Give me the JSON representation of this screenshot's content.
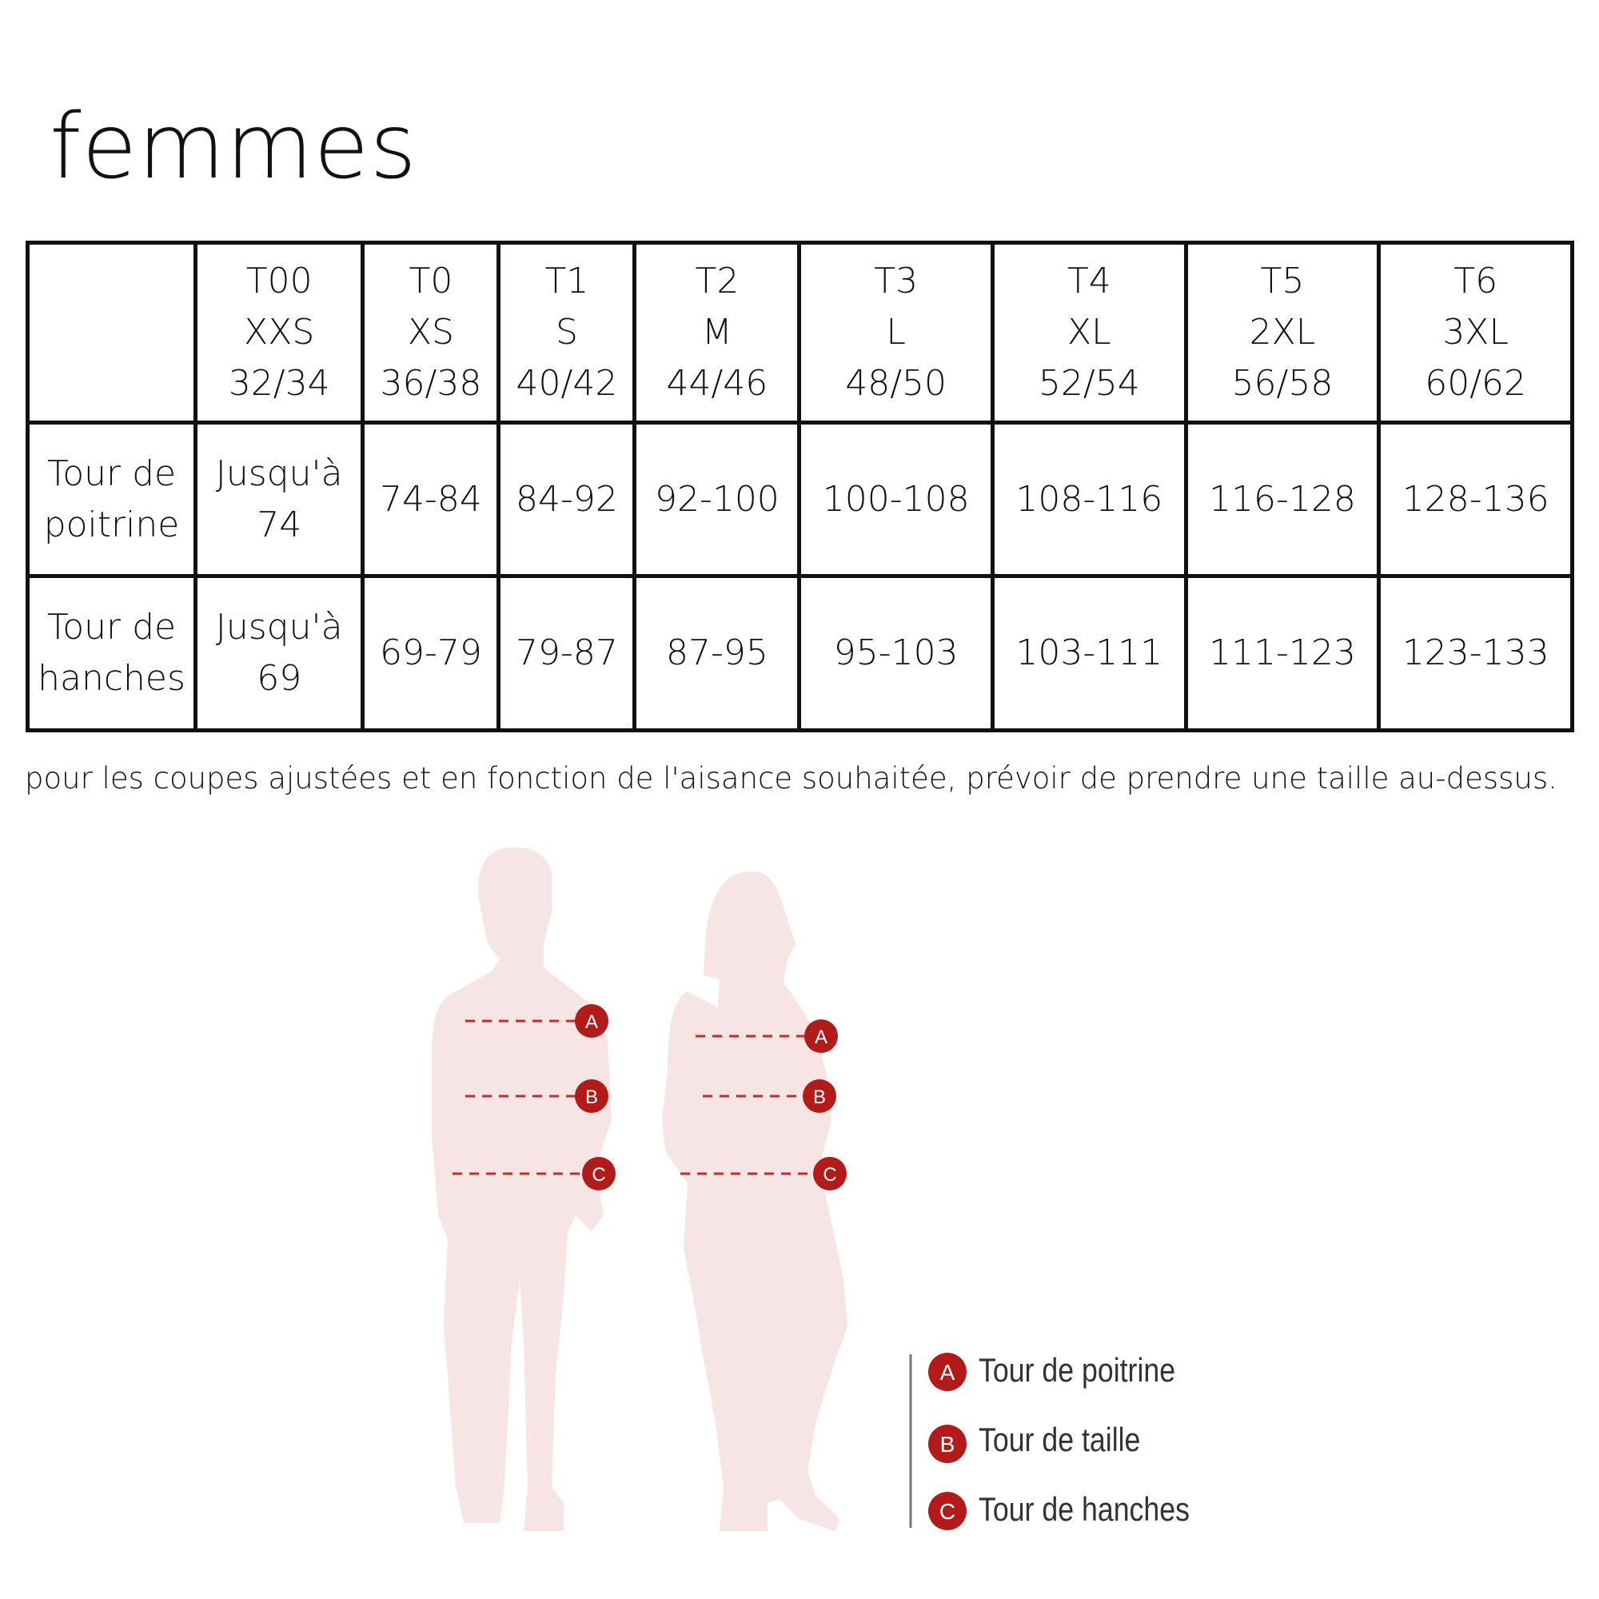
{
  "title": "femmes",
  "table": {
    "header": [
      [
        "T00",
        "XXS",
        "32/34"
      ],
      [
        "T0",
        "XS",
        "36/38"
      ],
      [
        "T1",
        "S",
        "40/42"
      ],
      [
        "T2",
        "M",
        "44/46"
      ],
      [
        "T3",
        "L",
        "48/50"
      ],
      [
        "T4",
        "XL",
        "52/54"
      ],
      [
        "T5",
        "2XL",
        "56/58"
      ],
      [
        "T6",
        "3XL",
        "60/62"
      ]
    ],
    "rows": [
      {
        "label": [
          "Tour de",
          "poitrine"
        ],
        "first": [
          "Jusqu'à",
          "74"
        ],
        "values": [
          "74-84",
          "84-92",
          "92-100",
          "100-108",
          "108-116",
          "116-128",
          "128-136"
        ]
      },
      {
        "label": [
          "Tour de",
          "hanches"
        ],
        "first": [
          "Jusqu'à",
          "69"
        ],
        "values": [
          "69-79",
          "79-87",
          "87-95",
          "95-103",
          "103-111",
          "111-123",
          "123-133"
        ]
      }
    ]
  },
  "note": "pour les coupes ajustées et en fonction de l'aisance souhaitée, prévoir de prendre une taille au-dessus.",
  "legend": [
    {
      "letter": "A",
      "label": "Tour de poitrine"
    },
    {
      "letter": "B",
      "label": "Tour de taille"
    },
    {
      "letter": "C",
      "label": "Tour de hanches"
    }
  ],
  "colors": {
    "marker": "#b31b1b",
    "silhouette": "#f7e4e4",
    "text": "#111111"
  }
}
